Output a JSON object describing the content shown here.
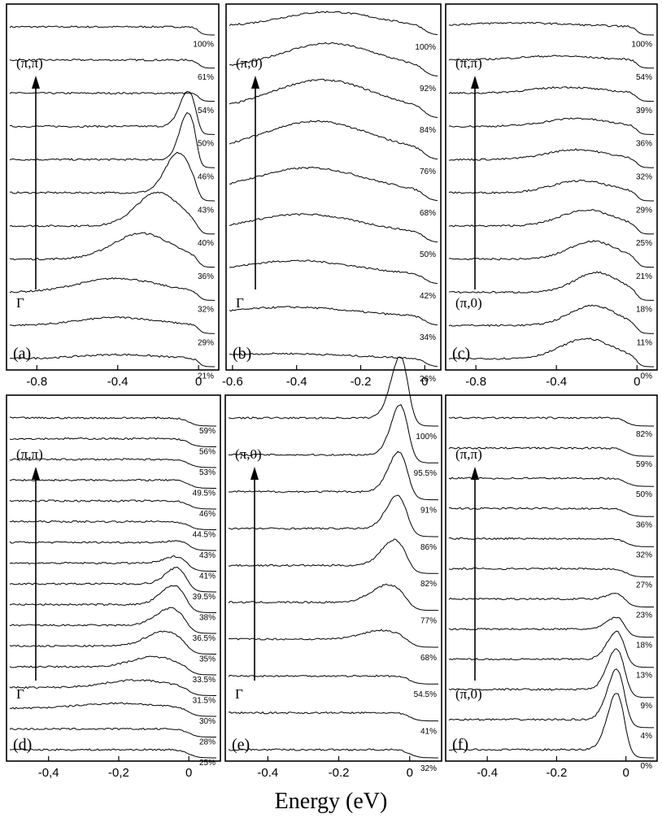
{
  "figure": {
    "xlabel": "Energy (eV)"
  },
  "chart_data": [
    {
      "type": "line",
      "panel": "(a)",
      "xlim": [
        -0.95,
        0.1
      ],
      "xticks": [
        "-0.8",
        "-0.4",
        "0"
      ],
      "xtick_values": [
        -0.8,
        -0.4,
        0
      ],
      "top_label": "(π,π)",
      "bottom_label": "Γ",
      "labels": [
        "100%",
        "61%",
        "54%",
        "50%",
        "46%",
        "43%",
        "40%",
        "36%",
        "32%",
        "29%",
        "21%"
      ],
      "peak_x": [
        null,
        null,
        null,
        -0.05,
        -0.05,
        -0.1,
        -0.2,
        -0.28,
        -0.4,
        -0.4,
        -0.4
      ],
      "peak_amp": [
        0,
        0,
        0,
        0.9,
        1.2,
        1.0,
        0.85,
        0.65,
        0.35,
        0.2,
        0.1
      ]
    },
    {
      "type": "line",
      "panel": "(b)",
      "xlim": [
        -0.62,
        0.05
      ],
      "xticks": [
        "-0.6",
        "-0.4",
        "-0.2",
        "0"
      ],
      "xtick_values": [
        -0.6,
        -0.4,
        -0.2,
        0
      ],
      "top_label": "(π,0)",
      "bottom_label": "Γ",
      "labels": [
        "100%",
        "92%",
        "84%",
        "76%",
        "68%",
        "50%",
        "42%",
        "34%",
        "26%"
      ],
      "peak_x": [
        -0.3,
        -0.3,
        -0.32,
        -0.34,
        -0.36,
        -0.38,
        -0.4,
        -0.42,
        -0.45
      ],
      "peak_amp": [
        0.3,
        0.5,
        0.6,
        0.6,
        0.5,
        0.4,
        0.3,
        0.2,
        0.1
      ]
    },
    {
      "type": "line",
      "panel": "(c)",
      "xlim": [
        -0.95,
        0.1
      ],
      "xticks": [
        "-0.8",
        "-0.4",
        "0"
      ],
      "xtick_values": [
        -0.8,
        -0.4,
        0
      ],
      "top_label": "(π,π)",
      "bottom_label": "(π,0)",
      "labels": [
        "100%",
        "54%",
        "39%",
        "36%",
        "32%",
        "29%",
        "25%",
        "21%",
        "18%",
        "11%",
        "0%"
      ],
      "peak_x": [
        -0.6,
        -0.4,
        -0.35,
        -0.3,
        -0.3,
        -0.28,
        -0.25,
        -0.22,
        -0.2,
        -0.22,
        -0.25
      ],
      "peak_amp": [
        0.1,
        0.1,
        0.15,
        0.2,
        0.25,
        0.3,
        0.4,
        0.45,
        0.5,
        0.5,
        0.5
      ]
    },
    {
      "type": "line",
      "panel": "(d)",
      "xlim": [
        -0.52,
        0.09
      ],
      "xticks": [
        "-0,4",
        "-0,2",
        "0"
      ],
      "xtick_values": [
        -0.4,
        -0.2,
        0
      ],
      "top_label": "(π,π)",
      "bottom_label": "Γ",
      "labels": [
        "59%",
        "56%",
        "53%",
        "49.5%",
        "46%",
        "44.5%",
        "43%",
        "41%",
        "39.5%",
        "38%",
        "36.5%",
        "35%",
        "33.5%",
        "31.5%",
        "30%",
        "28%",
        "25%"
      ],
      "peak_x": [
        null,
        null,
        null,
        null,
        null,
        null,
        -0.02,
        -0.03,
        -0.03,
        -0.04,
        -0.05,
        -0.07,
        -0.1,
        -0.15,
        -0.2,
        null,
        null
      ],
      "peak_amp": [
        0,
        0,
        0,
        0,
        0,
        0,
        0.1,
        0.3,
        0.7,
        0.8,
        0.7,
        0.6,
        0.4,
        0.3,
        0.2,
        0,
        0
      ]
    },
    {
      "type": "line",
      "panel": "(e)",
      "xlim": [
        -0.52,
        0.09
      ],
      "xticks": [
        "-0.4",
        "-0.2",
        "0"
      ],
      "xtick_values": [
        -0.4,
        -0.2,
        0
      ],
      "top_label": "(π,0)",
      "bottom_label": "Γ",
      "labels": [
        "100%",
        "95.5%",
        "91%",
        "86%",
        "82%",
        "77%",
        "68%",
        "54.5%",
        "41%",
        "32%"
      ],
      "peak_x": [
        -0.02,
        -0.02,
        -0.025,
        -0.03,
        -0.04,
        -0.06,
        -0.08,
        null,
        null,
        null
      ],
      "peak_amp": [
        1.6,
        1.3,
        1.0,
        0.8,
        0.6,
        0.4,
        0.2,
        0,
        0,
        0
      ]
    },
    {
      "type": "line",
      "panel": "(f)",
      "xlim": [
        -0.52,
        0.09
      ],
      "xticks": [
        "-0.4",
        "-0.2",
        "0"
      ],
      "xtick_values": [
        -0.4,
        -0.2,
        0
      ],
      "top_label": "(π,π)",
      "bottom_label": "(π,0)",
      "labels": [
        "82%",
        "59%",
        "50%",
        "36%",
        "32%",
        "27%",
        "23%",
        "18%",
        "13%",
        "9%",
        "4%",
        "0%"
      ],
      "peak_x": [
        null,
        null,
        null,
        null,
        null,
        null,
        -0.02,
        -0.02,
        -0.02,
        -0.02,
        -0.02,
        -0.02
      ],
      "peak_amp": [
        0,
        0,
        0,
        0,
        0,
        0,
        0.2,
        0.4,
        0.9,
        1.3,
        1.6,
        1.8
      ]
    }
  ]
}
